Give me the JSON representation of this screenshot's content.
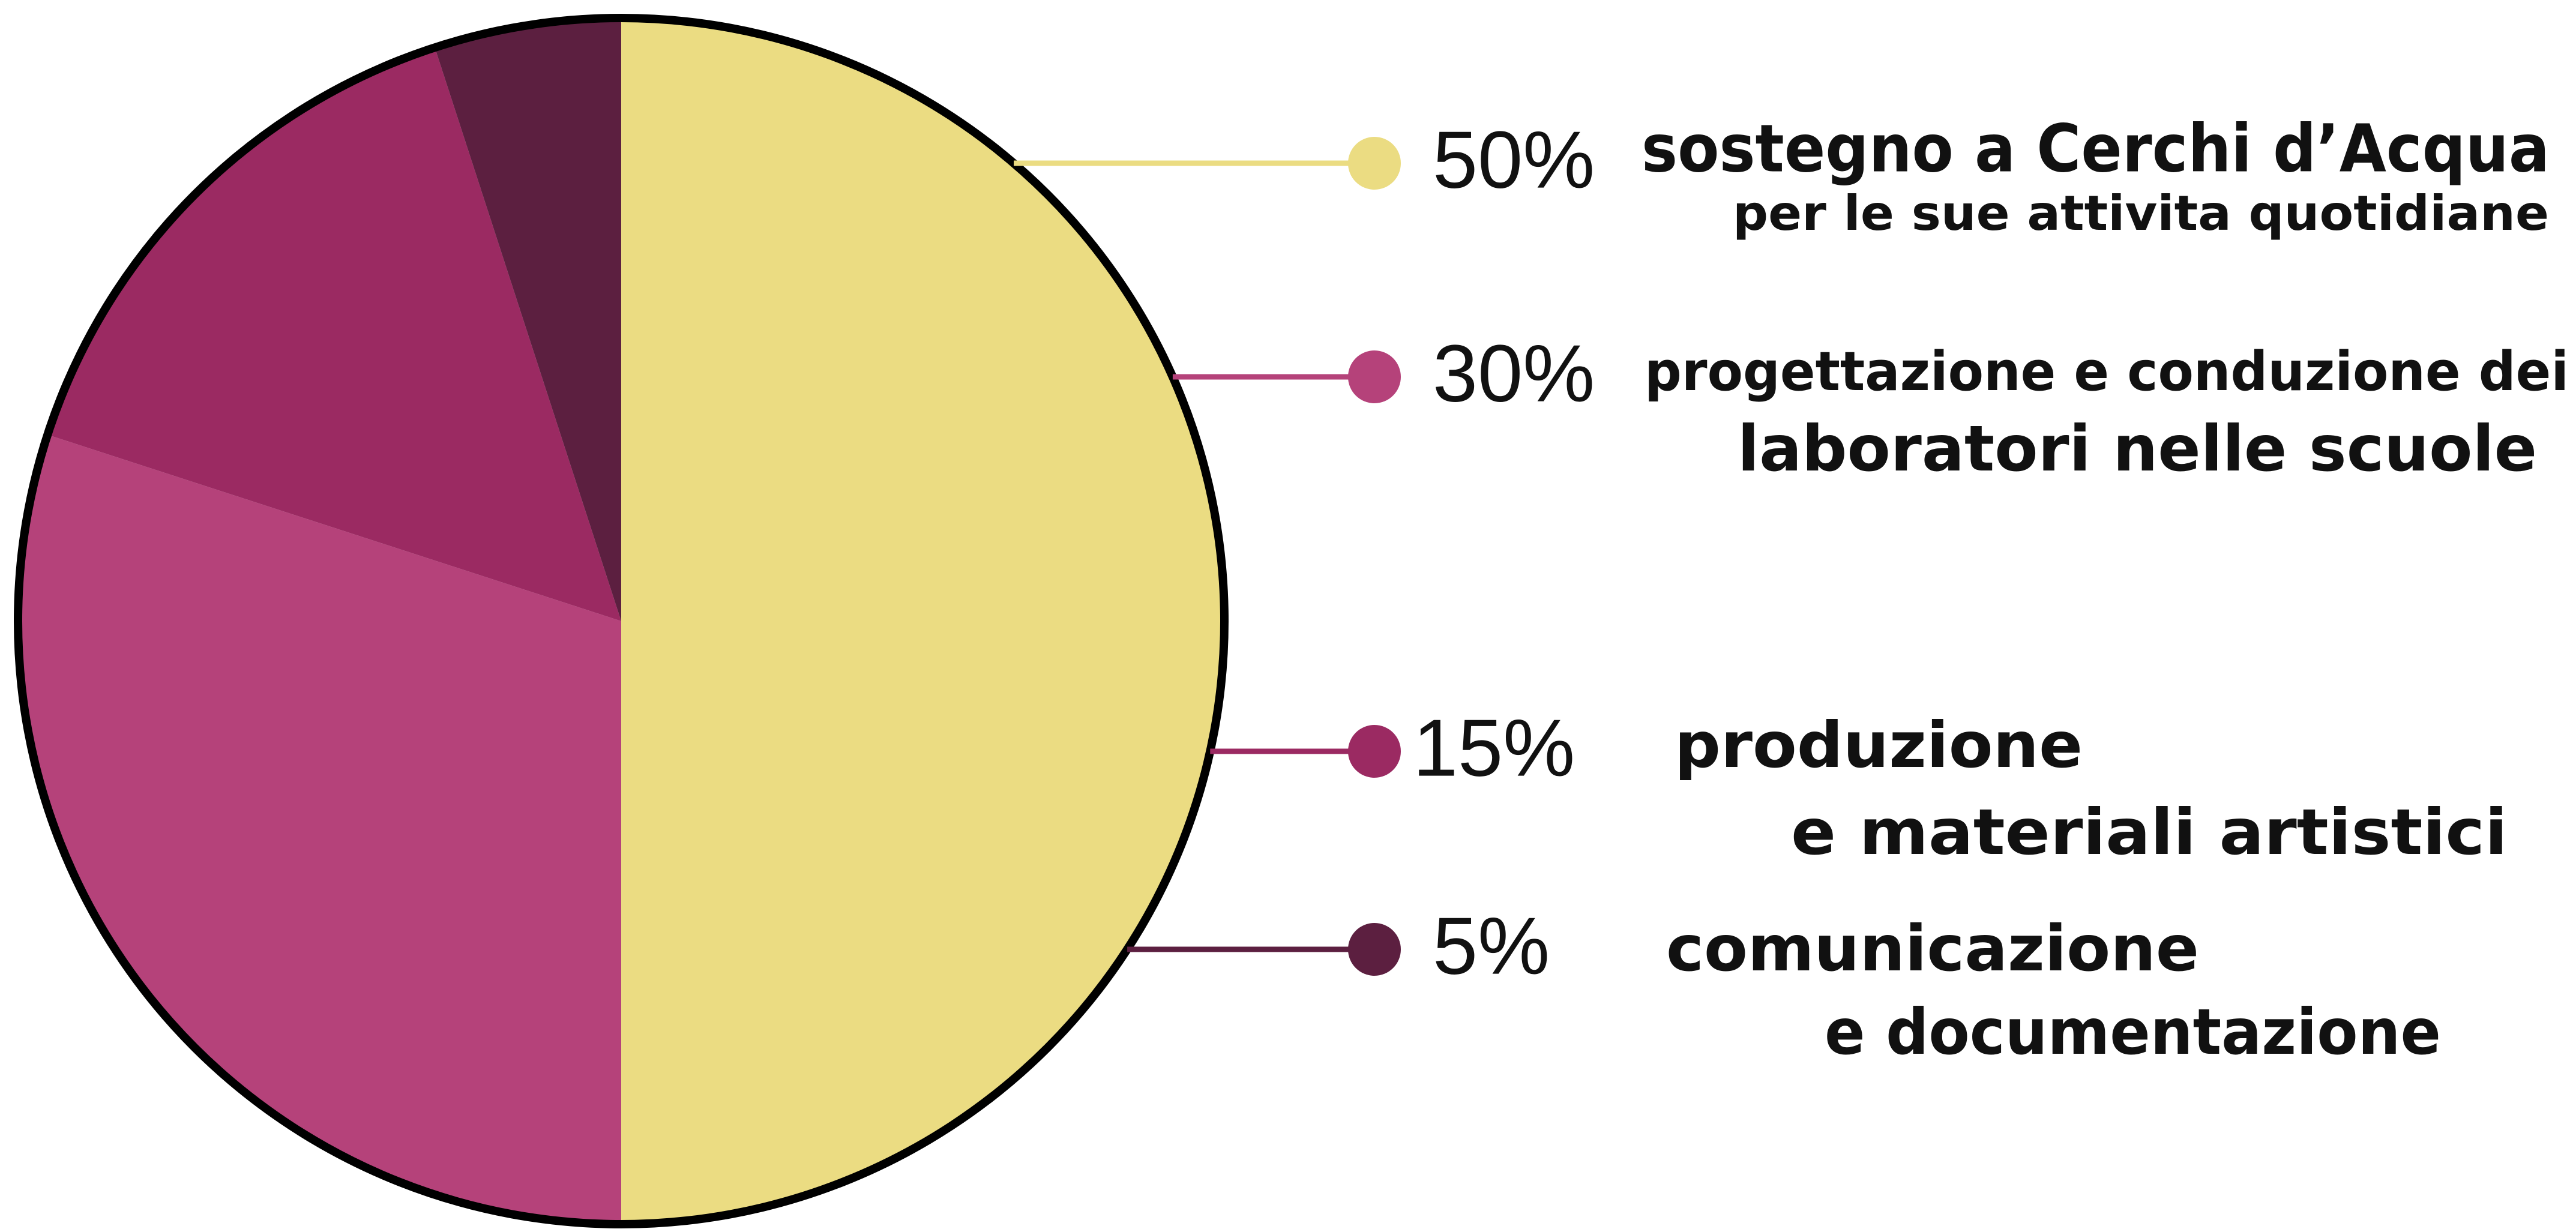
{
  "chart_data": {
    "type": "pie",
    "categories": [
      [
        "sostegno a Cerchi d’Acqua",
        "per le sue attivita quotidiane"
      ],
      [
        "progettazione e conduzione dei",
        "laboratori nelle scuole"
      ],
      [
        "produzione",
        "e materiali artistici"
      ],
      [
        "comunicazione",
        "e documentazione"
      ]
    ],
    "values": [
      50,
      30,
      15,
      5
    ],
    "value_labels": [
      "50%",
      "30%",
      "15%",
      "5%"
    ],
    "colors": [
      "#ebdc82",
      "#b5427a",
      "#9b2a62",
      "#5c1f40"
    ]
  }
}
